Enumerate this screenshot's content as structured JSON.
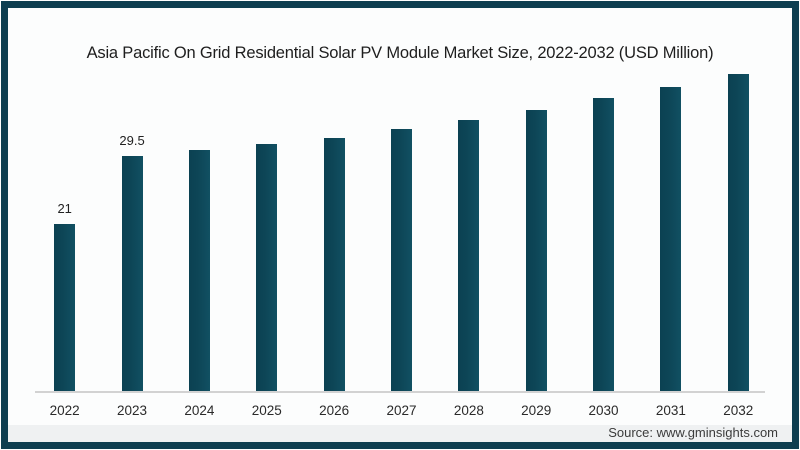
{
  "chart_data": {
    "type": "bar",
    "title": "Asia Pacific On Grid Residential Solar PV Module Market Size, 2022-2032 (USD Million)",
    "categories": [
      "2022",
      "2023",
      "2024",
      "2025",
      "2026",
      "2027",
      "2028",
      "2029",
      "2030",
      "2031",
      "2032"
    ],
    "values": [
      21,
      29.5,
      30.2,
      31.0,
      31.8,
      32.9,
      34.0,
      35.3,
      36.7,
      38.1,
      39.7
    ],
    "data_labels": [
      "21",
      "29.5",
      "",
      "",
      "",
      "",
      "",
      "",
      "",
      "",
      ""
    ],
    "xlabel": "",
    "ylabel": "",
    "ylim": [
      0,
      42
    ],
    "grid": false,
    "legend": false,
    "bar_color": "#0f4a5c",
    "frame_border_color": "#0e3e50",
    "background_color": "#fcfdfd"
  },
  "footer": {
    "source_label": "Source: www.gminsights.com"
  }
}
